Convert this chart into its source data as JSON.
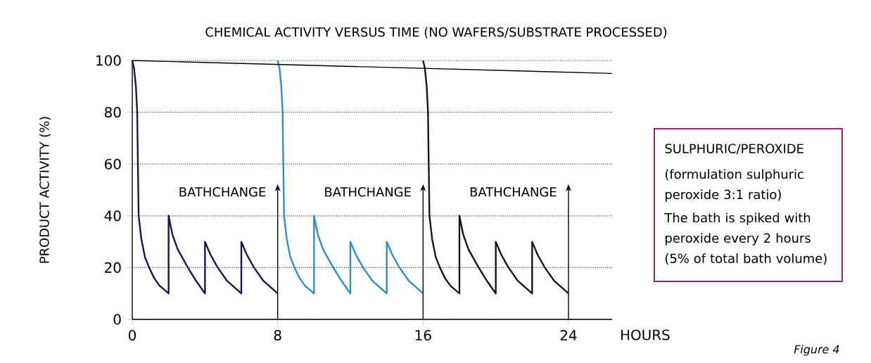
{
  "chart_data": {
    "type": "line",
    "title": "CHEMICAL ACTIVITY VERSUS TIME (NO WAFERS/SUBSTRATE PROCESSED)",
    "xlabel": "HOURS",
    "ylabel": "PRODUCT ACTIVITY (%)",
    "xlim": [
      0,
      26.4
    ],
    "ylim": [
      0,
      100
    ],
    "xticks": [
      0,
      8,
      16,
      24
    ],
    "yticks": [
      0,
      20,
      40,
      60,
      80,
      100
    ],
    "grid": "y",
    "marker": "none",
    "line_style": "solid",
    "series": [
      {
        "color": "#161650",
        "x": [
          0,
          0.1,
          0.2,
          0.27,
          0.31,
          0.35,
          0.5,
          0.7,
          0.93,
          1.2,
          1.5,
          2,
          2,
          2.2,
          2.5,
          3.06,
          3.5,
          4,
          4,
          4.3,
          4.7,
          5.2,
          6,
          6,
          6.3,
          6.7,
          7.2,
          8
        ],
        "values": [
          100,
          97,
          90,
          80,
          60,
          40,
          31,
          24,
          20,
          16,
          13,
          10,
          40,
          33,
          27,
          20,
          15,
          10,
          30,
          25,
          20,
          15,
          10,
          30,
          25,
          20,
          15,
          10
        ]
      },
      {
        "color": "#2b8fcc",
        "x": [
          8,
          8.1,
          8.2,
          8.27,
          8.31,
          8.35,
          8.5,
          8.7,
          8.93,
          9.2,
          9.5,
          10,
          10,
          10.2,
          10.5,
          11.06,
          11.5,
          12,
          12,
          12.3,
          12.7,
          13.2,
          14,
          14,
          14.3,
          14.7,
          15.2,
          16
        ],
        "values": [
          100,
          97,
          90,
          80,
          60,
          40,
          31,
          24,
          20,
          16,
          13,
          10,
          40,
          33,
          27,
          20,
          15,
          10,
          30,
          25,
          20,
          15,
          10,
          30,
          25,
          20,
          15,
          10
        ]
      },
      {
        "color": "#1c1414",
        "x": [
          16,
          16.1,
          16.2,
          16.27,
          16.31,
          16.35,
          16.5,
          16.7,
          16.93,
          17.2,
          17.5,
          18,
          18,
          18.2,
          18.5,
          19.06,
          19.5,
          20,
          20,
          20.3,
          20.7,
          21.2,
          22,
          22,
          22.3,
          22.7,
          23.2,
          24
        ],
        "values": [
          100,
          97,
          90,
          80,
          60,
          40,
          31,
          24,
          20,
          16,
          13,
          10,
          40,
          33,
          27,
          20,
          15,
          10,
          30,
          25,
          20,
          15,
          10,
          30,
          25,
          20,
          15,
          10
        ]
      },
      {
        "color": "#000000",
        "x": [
          0,
          26.4
        ],
        "values": [
          100,
          95
        ]
      }
    ],
    "annotations": [
      "SULPHURIC/PEROXIDE",
      "(formulation sulphuric peroxide 3:1 ratio)",
      "The bath is spiked with peroxide every 2 hours (5% of total bath volume)",
      "Figure 4"
    ],
    "ref_lines": [
      {
        "axis": "x",
        "value": 8,
        "label": "BATHCHANGE"
      },
      {
        "axis": "x",
        "value": 16,
        "label": "BATHCHANGE"
      },
      {
        "axis": "x",
        "value": 24,
        "label": "BATHCHANGE"
      }
    ]
  }
}
